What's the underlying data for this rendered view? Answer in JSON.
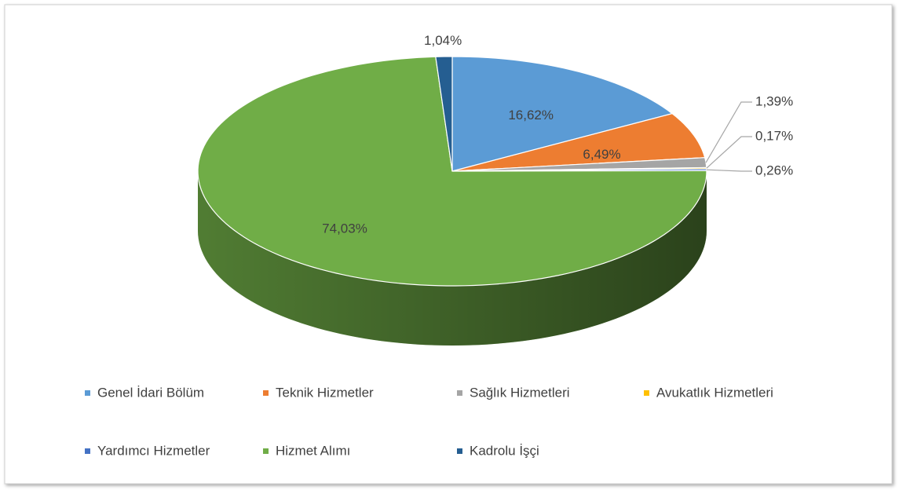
{
  "chart_data": {
    "type": "pie",
    "categories": [
      "Genel İdari Bölüm",
      "Teknik Hizmetler",
      "Sağlık Hizmetleri",
      "Avukatlık Hizmetleri",
      "Yardımcı Hizmetler",
      "Hizmet Alımı",
      "Kadrolu İşçi"
    ],
    "values": [
      16.62,
      6.49,
      1.39,
      0.17,
      0.26,
      74.03,
      1.04
    ],
    "value_labels": [
      "16,62%",
      "6,49%",
      "1,39%",
      "0,17%",
      "0,26%",
      "74,03%",
      "1,04%"
    ],
    "colors": [
      "#5b9bd5",
      "#ed7d31",
      "#a5a5a5",
      "#ffc000",
      "#4472c4",
      "#70ad47",
      "#255e91"
    ],
    "legend": "bottom"
  }
}
